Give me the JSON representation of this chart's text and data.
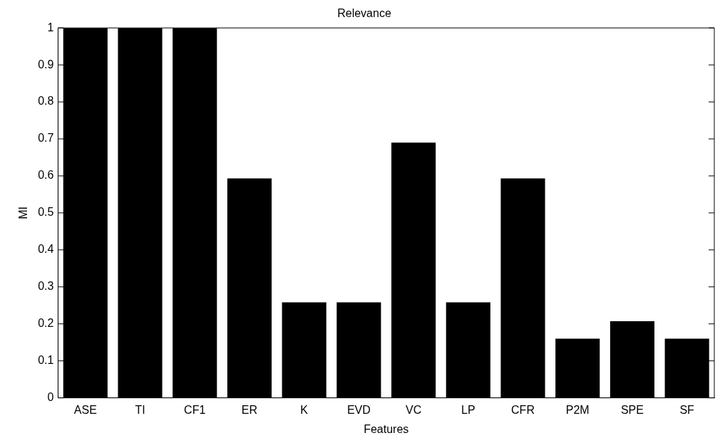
{
  "chart_data": {
    "type": "bar",
    "title": "Relevance",
    "xlabel": "Features",
    "ylabel": "MI",
    "categories": [
      "ASE",
      "TI",
      "CF1",
      "ER",
      "K",
      "EVD",
      "VC",
      "LP",
      "CFR",
      "P2M",
      "SPE",
      "SF"
    ],
    "values": [
      1,
      1,
      1,
      0.593,
      0.258,
      0.258,
      0.69,
      0.258,
      0.593,
      0.16,
      0.207,
      0.16
    ],
    "color": "#000000",
    "ylim": [
      0,
      1
    ],
    "yticks": [
      0,
      0.1,
      0.2,
      0.3,
      0.4,
      0.5,
      0.6,
      0.7,
      0.8,
      0.9,
      1
    ]
  }
}
